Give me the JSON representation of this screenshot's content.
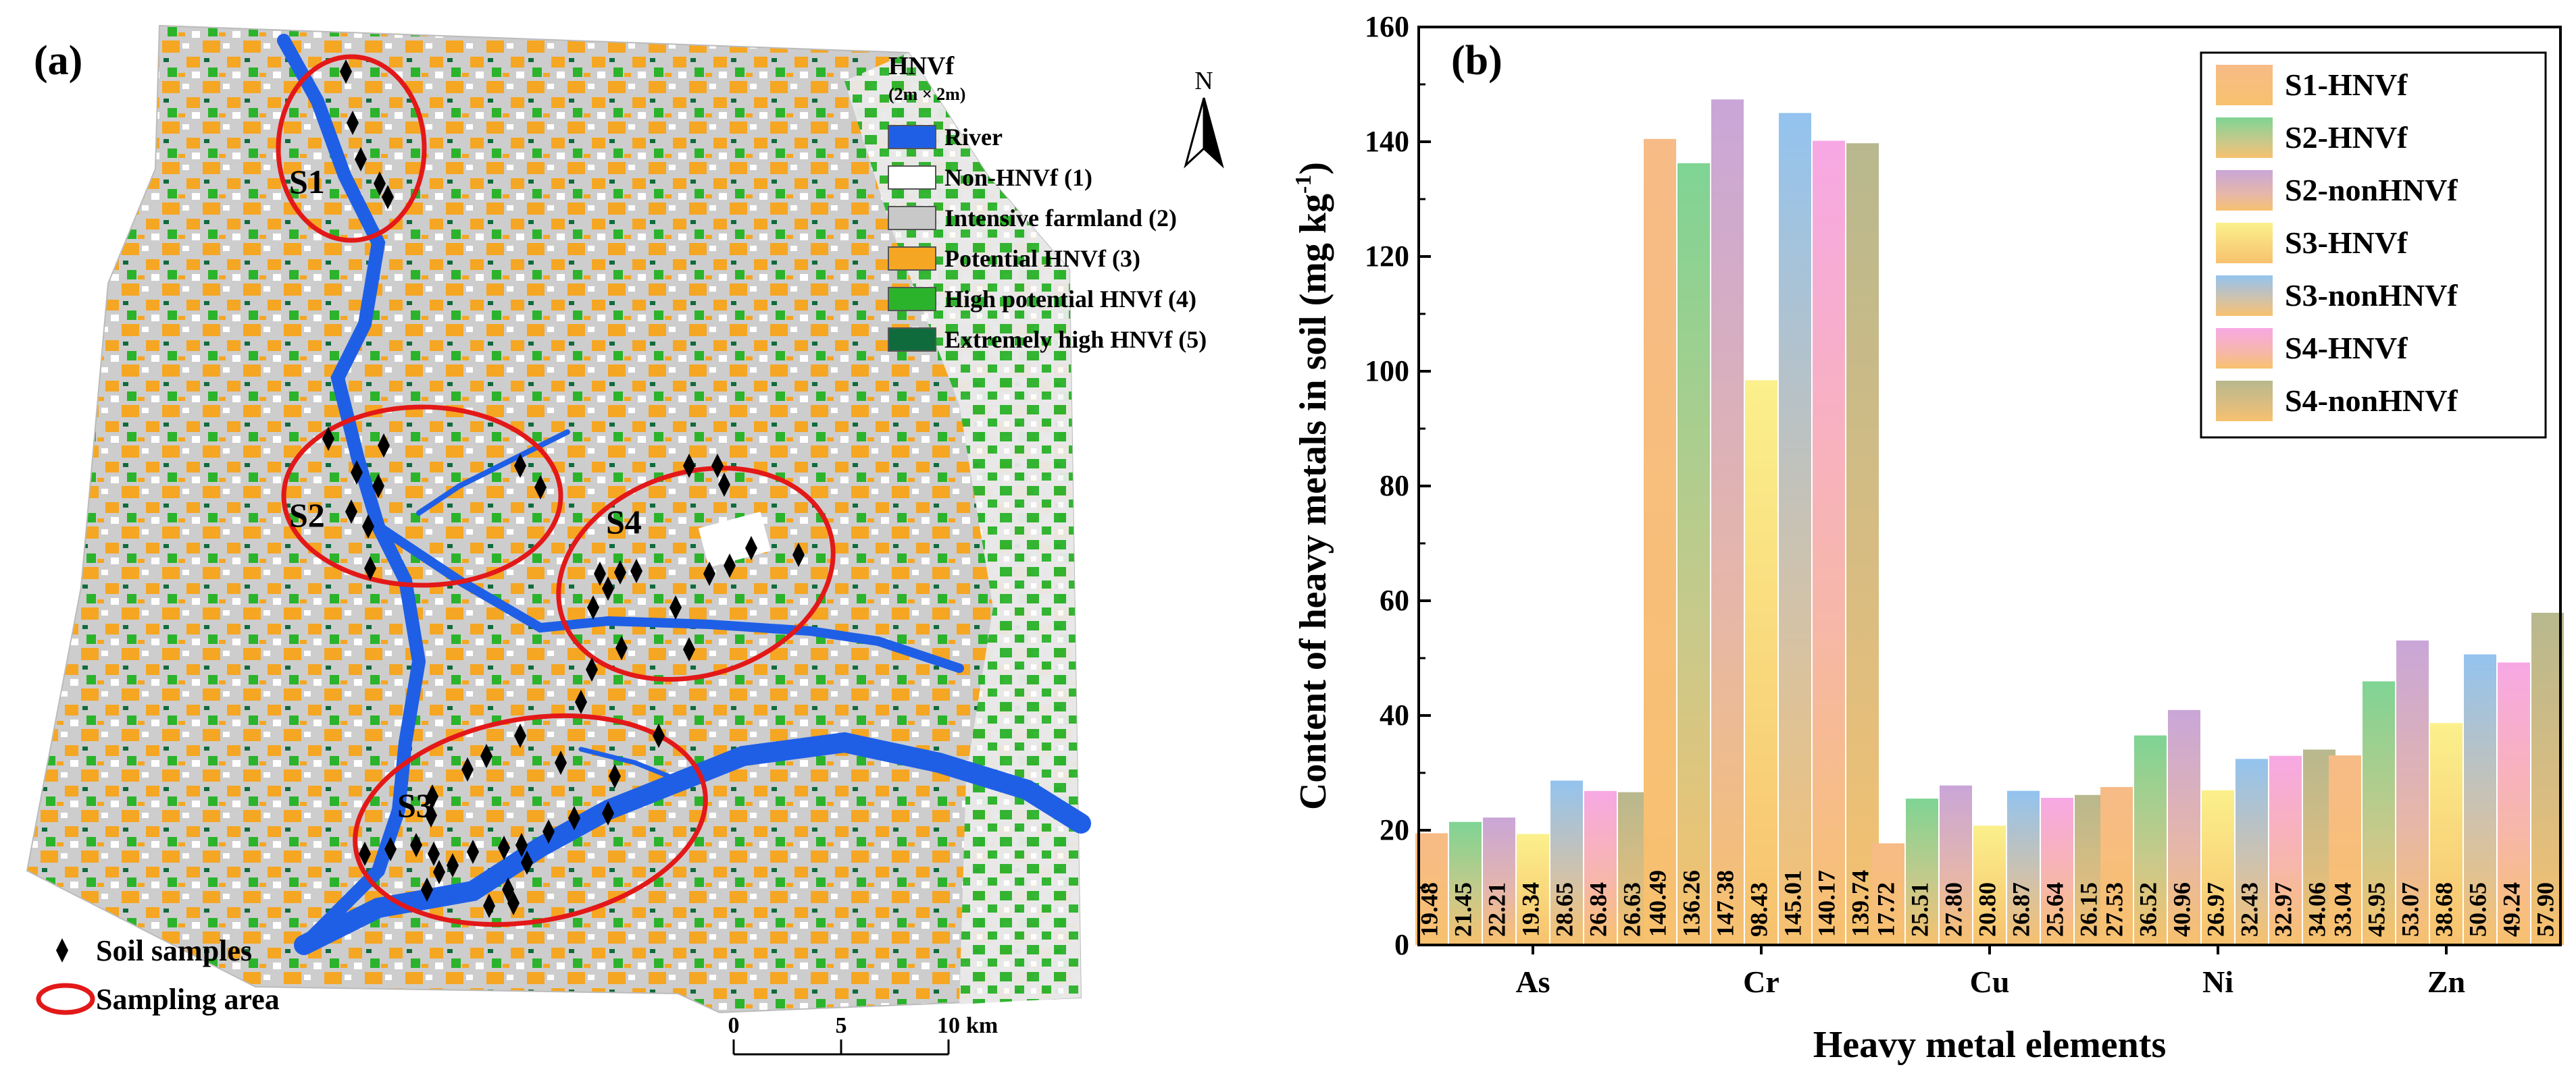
{
  "map_panel": {
    "label": "(a)",
    "legend": {
      "title": "HNVf",
      "subtitle": "(2m × 2m)",
      "items": [
        {
          "label": "River",
          "color": "#1f5fe6"
        },
        {
          "label": "Non-HNVf (1)",
          "color": "#ffffff"
        },
        {
          "label": "Intensive farmland (2)",
          "color": "#c8c8c8"
        },
        {
          "label": "Potential HNVf (3)",
          "color": "#f5a623"
        },
        {
          "label": "High potential HNVf (4)",
          "color": "#2bb32b"
        },
        {
          "label": "Extremely high HNVf (5)",
          "color": "#0f6b3c"
        }
      ]
    },
    "north": "N",
    "areas": [
      "S1",
      "S2",
      "S3",
      "S4"
    ],
    "bottom_legend": {
      "samples": "Soil samples",
      "area": "Sampling area"
    },
    "scalebar": {
      "ticks": [
        "0",
        "5",
        "10"
      ],
      "unit": "km"
    }
  },
  "chart_panel": {
    "label": "(b)",
    "chart_data": {
      "type": "bar",
      "categories": [
        "As",
        "Cr",
        "Cu",
        "Ni",
        "Zn"
      ],
      "xlabel": "Heavy metal elements",
      "ylabel_main": "Content of heavy metals in soil (mg kg",
      "ylabel_sup": "-1",
      "ylabel_end": ")",
      "ylim": [
        0,
        160
      ],
      "yticks": [
        "0",
        "20",
        "40",
        "60",
        "80",
        "100",
        "120",
        "140",
        "160"
      ],
      "legend_position": "top-right",
      "series": [
        {
          "name": "S1-HNVf",
          "color": "#f7bb87",
          "values": [
            19.48,
            140.49,
            17.72,
            27.53,
            33.04
          ],
          "labels": [
            "19.48",
            "140.49",
            "17.72",
            "27.53",
            "33.04"
          ]
        },
        {
          "name": "S2-HNVf",
          "color": "#7fd494",
          "values": [
            21.45,
            136.26,
            25.51,
            36.52,
            45.95
          ],
          "labels": [
            "21.45",
            "136.26",
            "25.51",
            "36.52",
            "45.95"
          ]
        },
        {
          "name": "S2-nonHNVf",
          "color": "#c9a6d8",
          "values": [
            22.21,
            147.38,
            27.8,
            40.96,
            53.07
          ],
          "labels": [
            "22.21",
            "147.38",
            "27.80",
            "40.96",
            "53.07"
          ]
        },
        {
          "name": "S3-HNVf",
          "color": "#fbf08c",
          "values": [
            19.34,
            98.43,
            20.8,
            26.97,
            38.68
          ],
          "labels": [
            "19.34",
            "98.43",
            "20.80",
            "26.97",
            "38.68"
          ]
        },
        {
          "name": "S3-nonHNVf",
          "color": "#93c3ef",
          "values": [
            28.65,
            145.01,
            26.87,
            32.43,
            50.65
          ],
          "labels": [
            "28.65",
            "145.01",
            "26.87",
            "32.43",
            "50.65"
          ]
        },
        {
          "name": "S4-HNVf",
          "color": "#f7a8e4",
          "values": [
            26.84,
            140.17,
            25.64,
            32.97,
            49.24
          ],
          "labels": [
            "26.84",
            "140.17",
            "25.64",
            "32.97",
            "49.24"
          ]
        },
        {
          "name": "S4-nonHNVf",
          "color": "#b8b88e",
          "values": [
            26.63,
            139.74,
            26.15,
            34.06,
            57.9
          ],
          "labels": [
            "26.63",
            "139.74",
            "26.15",
            "34.06",
            "57.90"
          ]
        }
      ]
    }
  }
}
